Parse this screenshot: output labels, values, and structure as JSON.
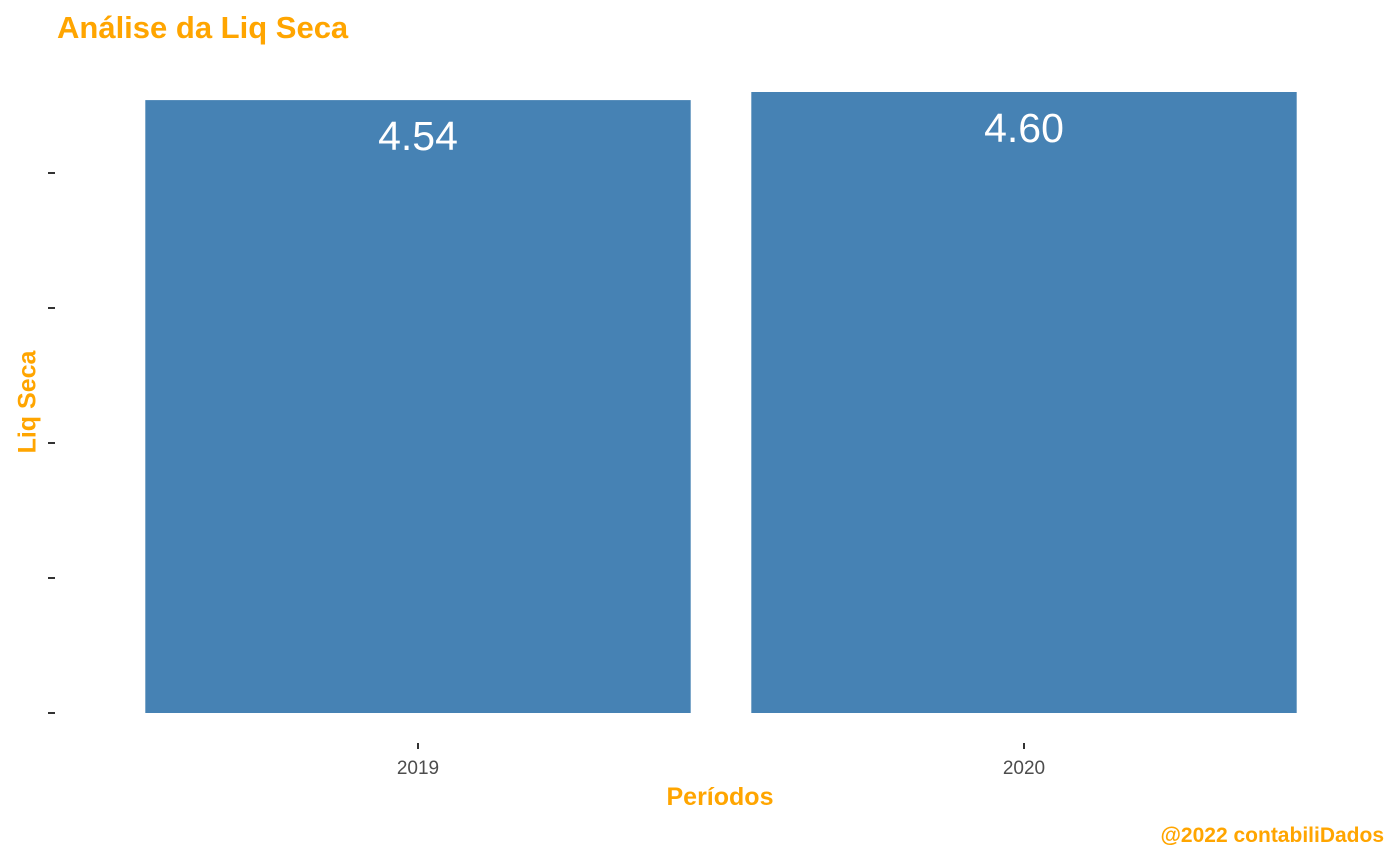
{
  "chart_data": {
    "type": "bar",
    "title": "Análise da Liq Seca",
    "xlabel": "Períodos",
    "ylabel": "Liq Seca",
    "caption": "@2022 contabiliDados",
    "categories": [
      "2019",
      "2020"
    ],
    "values": [
      4.54,
      4.6
    ],
    "data_labels": [
      "4.54",
      "4.60"
    ],
    "ylim": [
      0,
      4.6
    ],
    "y_tick_labels_shown": false,
    "grid": false,
    "colors": {
      "bar": "#4682B4",
      "data_label": "#FFFFFF",
      "title": "#FFA500",
      "axis_title": "#FFA500",
      "tick_label": "#4D4D4D",
      "tick": "#333333"
    }
  }
}
